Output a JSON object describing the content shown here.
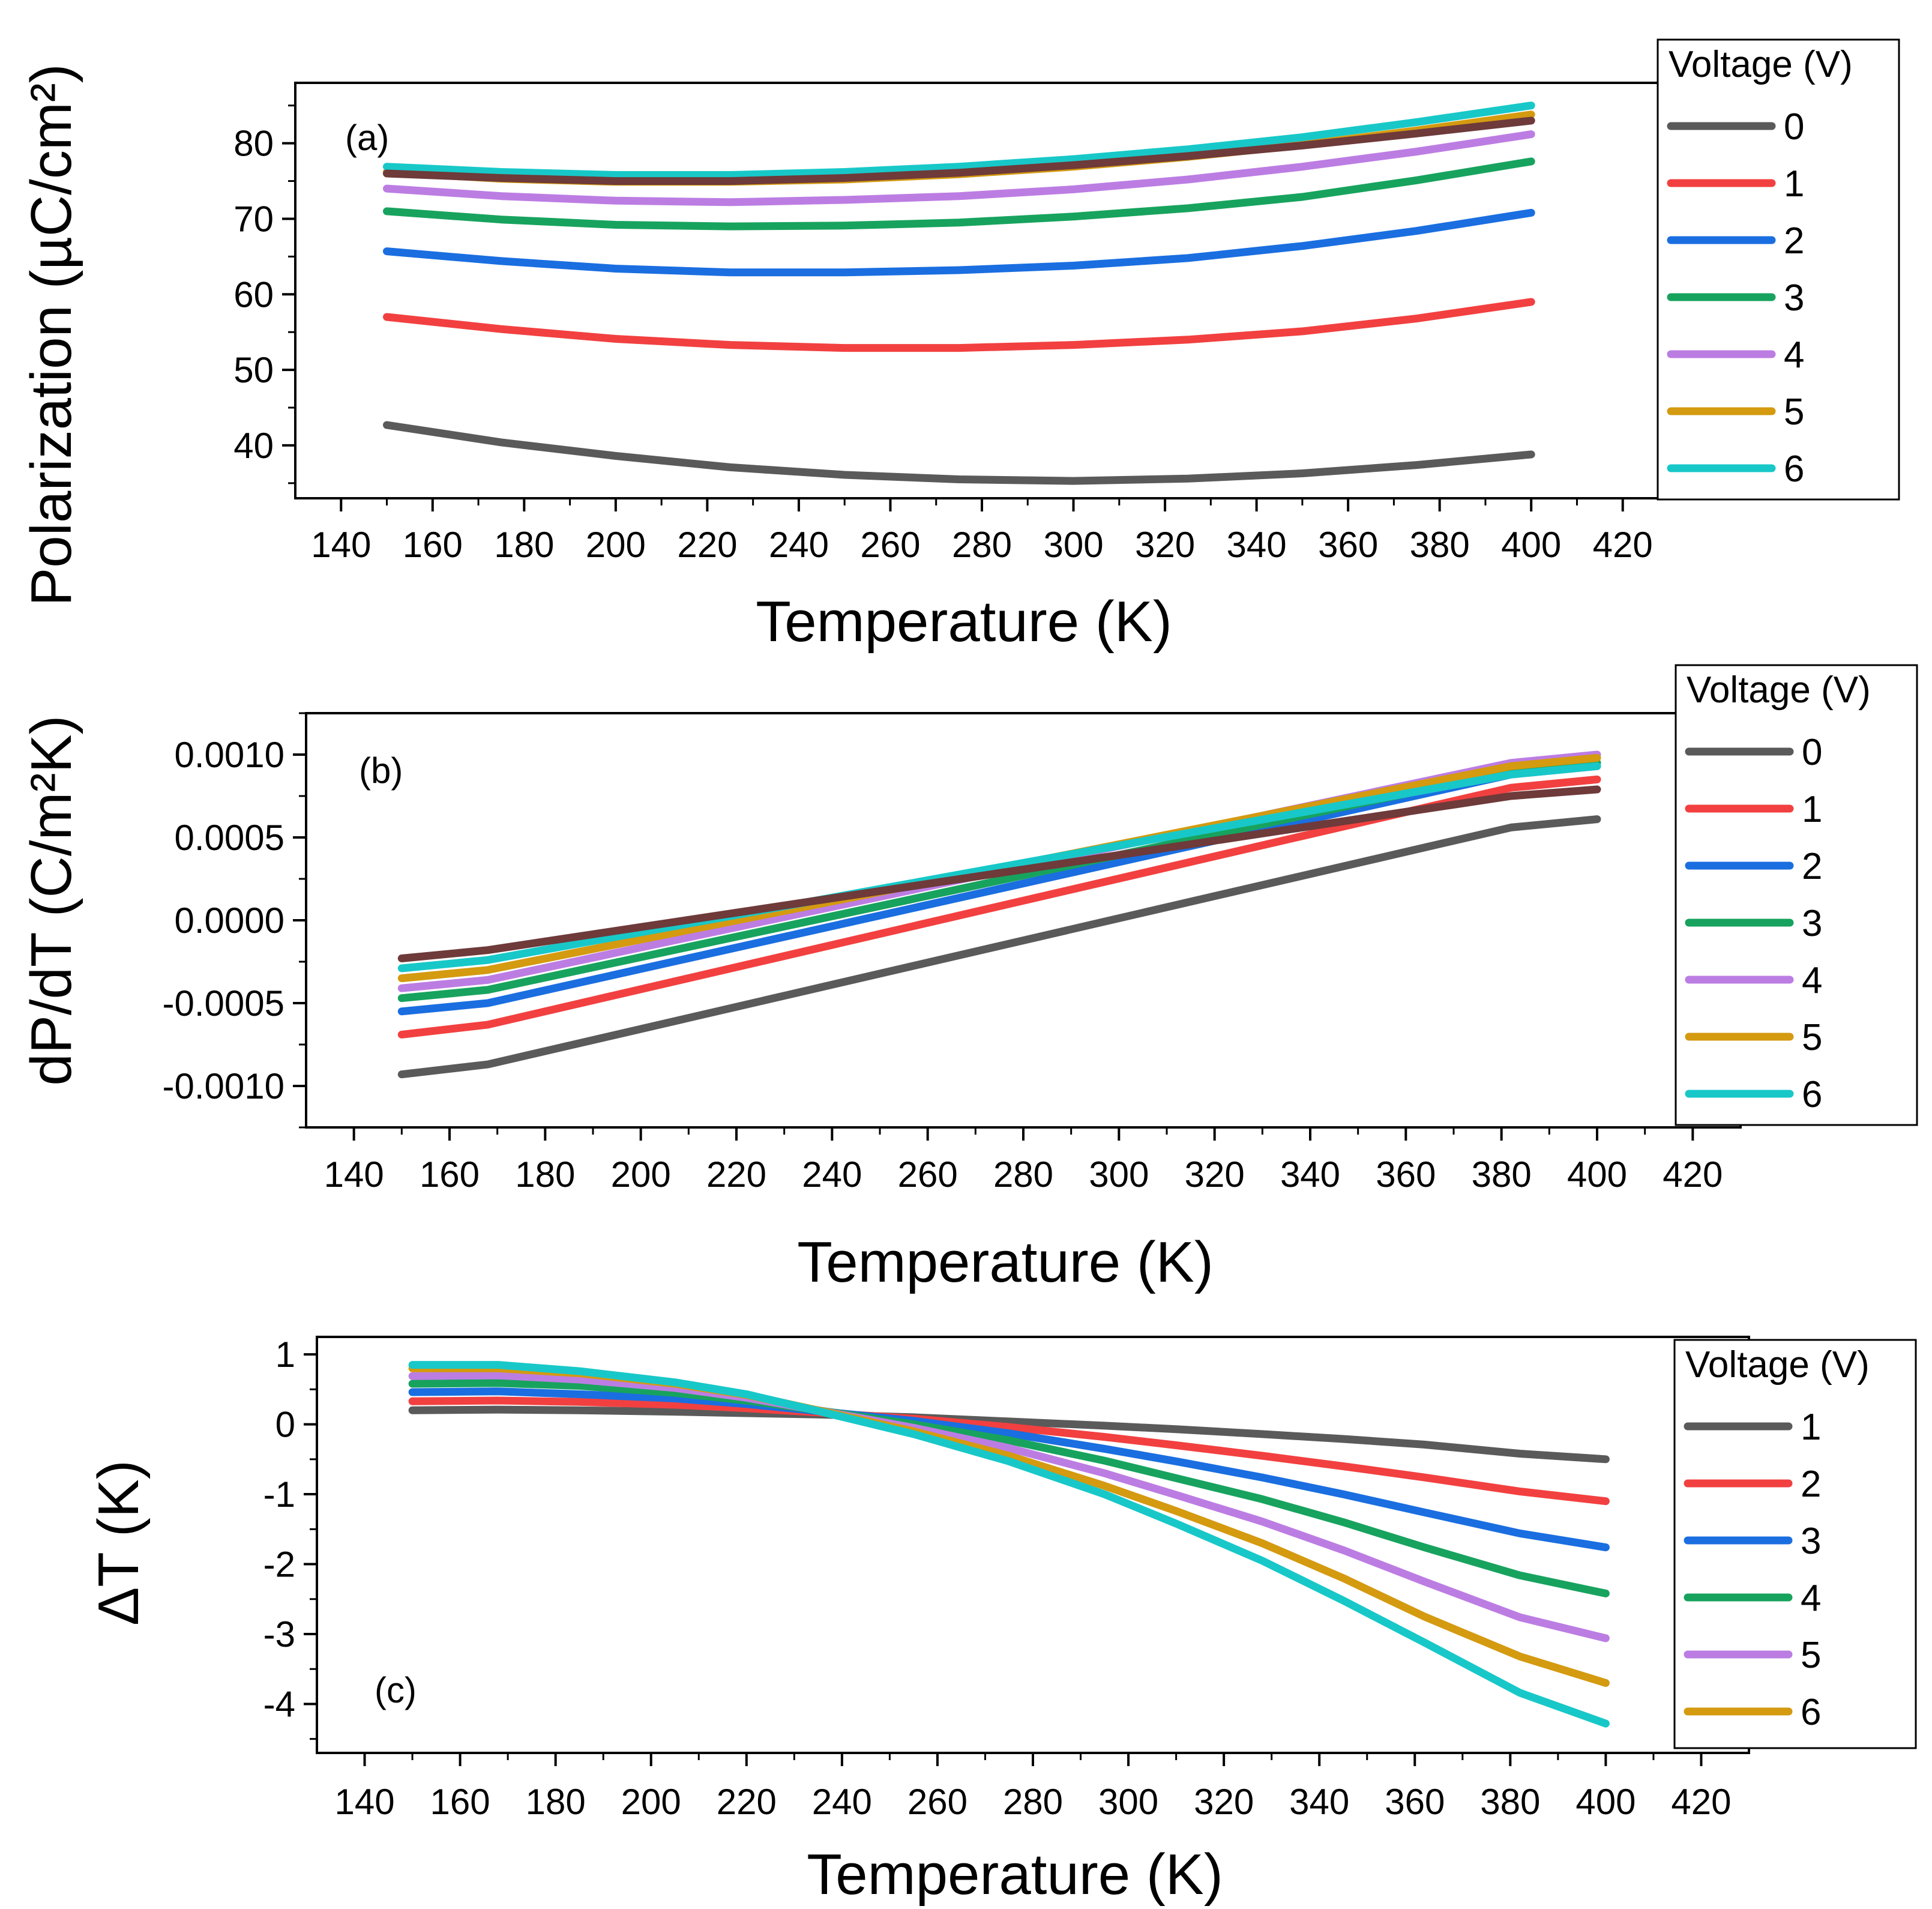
{
  "colors": {
    "0": "#5a5a5a",
    "1": "#f24040",
    "2": "#1a6ee0",
    "3": "#17a35e",
    "4": "#bc7de3",
    "5": "#d49a10",
    "6": "#18c8c8",
    "brown": "#6e3a3a"
  },
  "chart_data": [
    {
      "type": "line",
      "panel_label": "(a)",
      "xlabel": "Temperature (K)",
      "ylabel": "Polarization (µC/cm²)",
      "xlim": [
        130,
        430
      ],
      "ylim": [
        33,
        88
      ],
      "xticks": [
        140,
        160,
        180,
        200,
        220,
        240,
        260,
        280,
        300,
        320,
        340,
        360,
        380,
        400,
        420
      ],
      "xtick_labels": [
        "140",
        "160",
        "180",
        "200",
        "220",
        "240",
        "260",
        "280",
        "300",
        "320",
        "340",
        "360",
        "380",
        "400",
        "420"
      ],
      "yticks": [
        40,
        50,
        60,
        70,
        80
      ],
      "ytick_labels": [
        "40",
        "50",
        "60",
        "70",
        "80"
      ],
      "x": [
        150,
        175,
        200,
        225,
        250,
        275,
        300,
        325,
        350,
        375,
        400
      ],
      "legend_title": "Voltage (V)",
      "legend_position": "right",
      "series": [
        {
          "name": "0",
          "color_key": "0",
          "values": [
            42.7,
            40.4,
            38.6,
            37.1,
            36.1,
            35.5,
            35.3,
            35.6,
            36.3,
            37.4,
            38.8
          ]
        },
        {
          "name": "1",
          "color_key": "1",
          "values": [
            57.0,
            55.4,
            54.1,
            53.3,
            52.9,
            52.9,
            53.3,
            54.0,
            55.1,
            56.8,
            59.0
          ]
        },
        {
          "name": "2",
          "color_key": "2",
          "values": [
            65.7,
            64.4,
            63.4,
            62.9,
            62.9,
            63.2,
            63.8,
            64.8,
            66.4,
            68.4,
            70.8
          ]
        },
        {
          "name": "3",
          "color_key": "3",
          "values": [
            71.0,
            69.9,
            69.2,
            69.0,
            69.1,
            69.5,
            70.3,
            71.4,
            72.9,
            75.1,
            77.6
          ]
        },
        {
          "name": "4",
          "color_key": "4",
          "values": [
            74.0,
            73.0,
            72.4,
            72.2,
            72.5,
            73.0,
            73.9,
            75.2,
            76.9,
            78.9,
            81.2
          ]
        },
        {
          "name": "5",
          "color_key": "5",
          "values": [
            76.2,
            75.3,
            74.9,
            74.9,
            75.2,
            75.9,
            76.9,
            78.2,
            79.8,
            81.7,
            83.8
          ]
        },
        {
          "name": "6",
          "color_key": "6",
          "values": [
            76.9,
            76.2,
            75.8,
            75.8,
            76.2,
            76.9,
            77.9,
            79.2,
            80.8,
            82.8,
            85.0
          ]
        },
        {
          "name": "",
          "color_key": "brown",
          "values": [
            76.0,
            75.4,
            75.0,
            75.0,
            75.4,
            76.1,
            77.1,
            78.3,
            79.7,
            81.3,
            83.0
          ]
        }
      ]
    },
    {
      "type": "line",
      "panel_label": "(b)",
      "xlabel": "Temperature (K)",
      "ylabel": "dP/dT (C/m²K)",
      "xlim": [
        130,
        430
      ],
      "ylim": [
        -0.00125,
        0.00125
      ],
      "xticks": [
        140,
        160,
        180,
        200,
        220,
        240,
        260,
        280,
        300,
        320,
        340,
        360,
        380,
        400,
        420
      ],
      "xtick_labels": [
        "140",
        "160",
        "180",
        "200",
        "220",
        "240",
        "260",
        "280",
        "300",
        "320",
        "340",
        "360",
        "380",
        "400",
        "420"
      ],
      "yticks": [
        -0.001,
        -0.0005,
        0,
        0.0005,
        0.001
      ],
      "ytick_labels": [
        "-0.0010",
        "-0.0005",
        "0.0000",
        "0.0005",
        "0.0010"
      ],
      "x": [
        150,
        168,
        382,
        400
      ],
      "legend_title": "Voltage (V)",
      "legend_position": "right",
      "series": [
        {
          "name": "0",
          "color_key": "0",
          "values": [
            -0.00093,
            -0.00087,
            0.00056,
            0.00061
          ]
        },
        {
          "name": "1",
          "color_key": "1",
          "values": [
            -0.00069,
            -0.00063,
            0.0008,
            0.00085
          ]
        },
        {
          "name": "2",
          "color_key": "2",
          "values": [
            -0.00055,
            -0.0005,
            0.00088,
            0.00093
          ]
        },
        {
          "name": "3",
          "color_key": "3",
          "values": [
            -0.00047,
            -0.00042,
            0.0009,
            0.00095
          ]
        },
        {
          "name": "4",
          "color_key": "4",
          "values": [
            -0.00041,
            -0.00036,
            0.00095,
            0.001
          ]
        },
        {
          "name": "5",
          "color_key": "5",
          "values": [
            -0.00035,
            -0.0003,
            0.00093,
            0.00098
          ]
        },
        {
          "name": "6",
          "color_key": "6",
          "values": [
            -0.00029,
            -0.00024,
            0.00088,
            0.00093
          ]
        },
        {
          "name": "",
          "color_key": "brown",
          "values": [
            -0.00023,
            -0.00018,
            0.00075,
            0.00079
          ]
        }
      ]
    },
    {
      "type": "line",
      "panel_label": "(c)",
      "xlabel": "Temperature (K)",
      "ylabel": "ΔT (K)",
      "xlim": [
        130,
        430
      ],
      "ylim": [
        -4.7,
        1.25
      ],
      "xticks": [
        140,
        160,
        180,
        200,
        220,
        240,
        260,
        280,
        300,
        320,
        340,
        360,
        380,
        400,
        420
      ],
      "xtick_labels": [
        "140",
        "160",
        "180",
        "200",
        "220",
        "240",
        "260",
        "280",
        "300",
        "320",
        "340",
        "360",
        "380",
        "400",
        "420"
      ],
      "yticks": [
        -4,
        -3,
        -2,
        -1,
        0,
        1
      ],
      "ytick_labels": [
        "-4",
        "-3",
        "-2",
        "-1",
        "0",
        "1"
      ],
      "x": [
        150,
        168,
        185,
        205,
        220,
        235,
        255,
        275,
        295,
        310,
        328,
        345,
        362,
        382,
        400
      ],
      "legend_title": "Voltage (V)",
      "legend_position": "right",
      "series": [
        {
          "name": "1",
          "color_key": "0",
          "values": [
            0.2,
            0.21,
            0.2,
            0.18,
            0.16,
            0.14,
            0.1,
            0.04,
            -0.02,
            -0.07,
            -0.14,
            -0.21,
            -0.29,
            -0.42,
            -0.5
          ]
        },
        {
          "name": "2",
          "color_key": "1",
          "values": [
            0.33,
            0.34,
            0.32,
            0.28,
            0.23,
            0.17,
            0.08,
            -0.04,
            -0.18,
            -0.3,
            -0.45,
            -0.6,
            -0.76,
            -0.96,
            -1.1
          ]
        },
        {
          "name": "3",
          "color_key": "2",
          "values": [
            0.46,
            0.47,
            0.43,
            0.37,
            0.29,
            0.19,
            0.05,
            -0.13,
            -0.35,
            -0.53,
            -0.76,
            -1.0,
            -1.26,
            -1.56,
            -1.76
          ]
        },
        {
          "name": "4",
          "color_key": "3",
          "values": [
            0.58,
            0.59,
            0.55,
            0.45,
            0.34,
            0.2,
            0.0,
            -0.23,
            -0.52,
            -0.77,
            -1.07,
            -1.4,
            -1.76,
            -2.16,
            -2.42
          ]
        },
        {
          "name": "5",
          "color_key": "4",
          "values": [
            0.69,
            0.7,
            0.64,
            0.52,
            0.38,
            0.2,
            -0.05,
            -0.34,
            -0.7,
            -1.01,
            -1.39,
            -1.8,
            -2.25,
            -2.76,
            -3.06
          ]
        },
        {
          "name": "6",
          "color_key": "5",
          "values": [
            0.8,
            0.8,
            0.73,
            0.58,
            0.42,
            0.2,
            -0.1,
            -0.45,
            -0.88,
            -1.24,
            -1.7,
            -2.2,
            -2.75,
            -3.32,
            -3.7
          ]
        },
        {
          "name": "",
          "color_key": "6",
          "values": [
            0.85,
            0.85,
            0.76,
            0.6,
            0.43,
            0.19,
            -0.14,
            -0.53,
            -1.0,
            -1.42,
            -1.95,
            -2.52,
            -3.12,
            -3.84,
            -4.28
          ]
        }
      ]
    }
  ]
}
